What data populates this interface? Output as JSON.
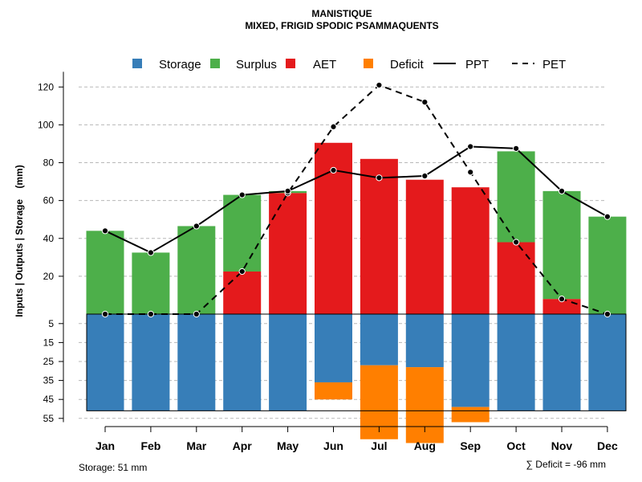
{
  "chart_data": {
    "type": "bar",
    "title": "MANISTIQUE",
    "subtitle": "MIXED, FRIGID SPODIC PSAMMAQUENTS",
    "ylabel": "Inputs | Outputs | Storage    (mm)",
    "categories": [
      "Jan",
      "Feb",
      "Mar",
      "Apr",
      "May",
      "Jun",
      "Jul",
      "Aug",
      "Sep",
      "Oct",
      "Nov",
      "Dec"
    ],
    "upper_ticks": [
      20,
      40,
      60,
      80,
      100,
      120
    ],
    "lower_ticks": [
      5,
      15,
      25,
      35,
      45,
      55
    ],
    "ylim_upper": [
      0,
      128
    ],
    "ylim_lower": [
      0,
      57
    ],
    "legend": [
      {
        "label": "Storage",
        "kind": "box",
        "color": "#377EB8"
      },
      {
        "label": "Surplus",
        "kind": "box",
        "color": "#4DAF4A"
      },
      {
        "label": "AET",
        "kind": "box",
        "color": "#E41A1C"
      },
      {
        "label": "Deficit",
        "kind": "box",
        "color": "#FF7F00"
      },
      {
        "label": "PPT",
        "kind": "solid"
      },
      {
        "label": "PET",
        "kind": "dashed"
      }
    ],
    "series": [
      {
        "name": "AET",
        "values": [
          0,
          0,
          0,
          22.5,
          64,
          90.5,
          82,
          71,
          67,
          38,
          8,
          0
        ]
      },
      {
        "name": "Surplus",
        "values": [
          44,
          32.5,
          46.5,
          40.5,
          1,
          0,
          0,
          0,
          0,
          48,
          57,
          51.5
        ]
      },
      {
        "name": "Storage",
        "values": [
          51,
          51,
          51,
          51,
          51,
          36,
          27,
          28,
          49,
          51,
          51,
          51
        ]
      },
      {
        "name": "Deficit",
        "values": [
          0,
          0,
          0,
          0,
          0,
          9,
          39,
          40,
          8,
          0,
          0,
          0
        ]
      },
      {
        "name": "PPT",
        "values": [
          44,
          32.5,
          46.5,
          63,
          65,
          76,
          72,
          73,
          88.5,
          87.5,
          65,
          51.5
        ]
      },
      {
        "name": "PET",
        "values": [
          0,
          0,
          0,
          22.5,
          64,
          99,
          121,
          112,
          75,
          38,
          8,
          0
        ]
      }
    ],
    "storage_capacity": 51,
    "storage_note": "Storage: 51 mm",
    "deficit_note": "∑ Deficit = -96 mm"
  }
}
